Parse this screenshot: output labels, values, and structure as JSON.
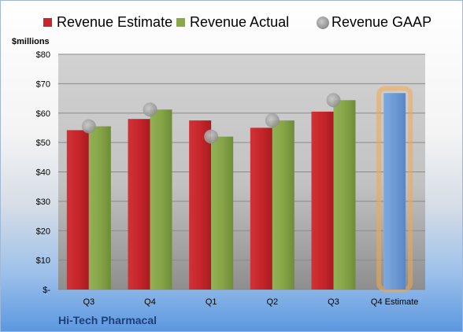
{
  "chart_data": {
    "type": "bar",
    "title": "",
    "ylabel": "$millions",
    "xlabel": "",
    "categories": [
      "Q3",
      "Q4",
      "Q1",
      "Q2",
      "Q3",
      "Q4 Estimate"
    ],
    "ylim": [
      0,
      80
    ],
    "yticks": [
      0,
      10,
      20,
      30,
      40,
      50,
      60,
      70,
      80
    ],
    "ytick_labels": [
      "$-",
      "$10",
      "$20",
      "$30",
      "$40",
      "$50",
      "$60",
      "$70",
      "$80"
    ],
    "grid": true,
    "legend_position": "top",
    "series": [
      {
        "name": "Revenue Estimate",
        "kind": "bar",
        "color": "#c8262b",
        "values": [
          54.2,
          58.0,
          57.5,
          55.0,
          60.5,
          66.8
        ]
      },
      {
        "name": "Revenue Actual",
        "kind": "bar",
        "color": "#8aa84a",
        "values": [
          55.5,
          61.2,
          52.0,
          57.5,
          64.4,
          null
        ]
      },
      {
        "name": "Revenue GAAP",
        "kind": "scatter",
        "color": "#a6a6a6",
        "values": [
          55.5,
          61.2,
          52.0,
          57.5,
          64.4,
          null
        ]
      }
    ],
    "highlight": {
      "category": "Q4 Estimate",
      "color": "#6f9fd8",
      "glow": "#f3a74d"
    }
  },
  "footer": {
    "company": "Hi-Tech Pharmacal"
  }
}
